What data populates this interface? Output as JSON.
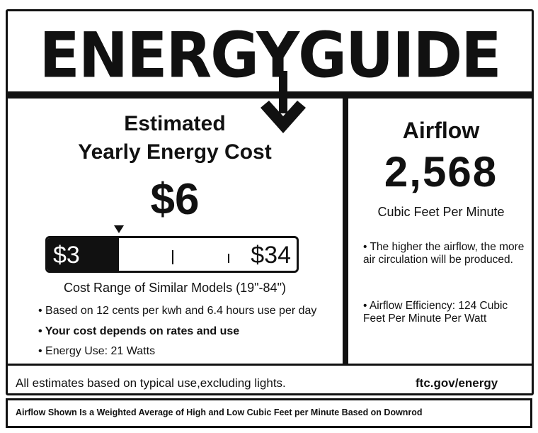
{
  "header": {
    "title": "ENERGYGUIDE"
  },
  "cost": {
    "heading_line1": "Estimated",
    "heading_line2": "Yearly Energy Cost",
    "value": "$6",
    "range_low": "$3",
    "range_high": "$34",
    "range_low_value": 3,
    "range_high_value": 34,
    "estimate_value": 6,
    "range_caption": "Cost Range of Similar Models (19\"-84\")",
    "bullets": [
      "• Based on 12 cents per kwh and 6.4 hours use per day",
      "• Your cost depends on rates and use",
      "• Energy Use: 21 Watts"
    ]
  },
  "airflow": {
    "heading": "Airflow",
    "value": "2,568",
    "unit": "Cubic Feet Per Minute",
    "bullets": [
      "• The higher the airflow, the more air circulation will be produced.",
      "• Airflow Efficiency: 124 Cubic Feet Per Minute Per Watt"
    ]
  },
  "footer": {
    "disclaimer": "All estimates based on typical use,excluding lights.",
    "link": "ftc.gov/energy",
    "note": "Airflow Shown Is a Weighted Average of High and Low Cubic Feet per Minute Based on Downrod"
  },
  "colors": {
    "ink": "#111111",
    "paper": "#ffffff"
  }
}
